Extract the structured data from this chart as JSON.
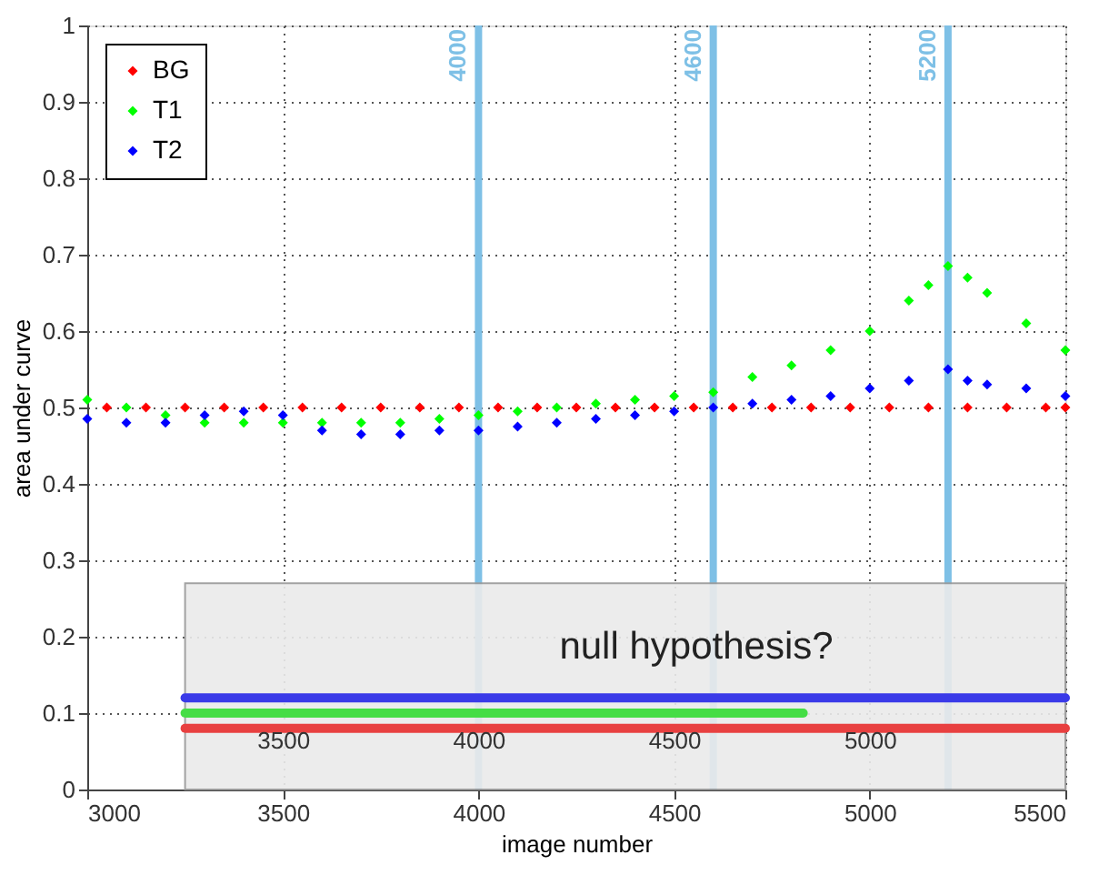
{
  "chart_data": {
    "type": "scatter",
    "xlabel": "image number",
    "ylabel": "area under curve",
    "xlim": [
      3000,
      5500
    ],
    "ylim": [
      0,
      1
    ],
    "xticks": [
      3000,
      3500,
      4000,
      4500,
      5000,
      5500
    ],
    "yticks": [
      0,
      0.1,
      0.2,
      0.3,
      0.4,
      0.5,
      0.6,
      0.7,
      0.8,
      0.9,
      1
    ],
    "grid": true,
    "legend": "top left",
    "marker": "diamond",
    "series": [
      {
        "name": "BG",
        "color": "#ff0000",
        "x": [
          3050,
          3150,
          3250,
          3350,
          3450,
          3550,
          3650,
          3750,
          3850,
          3950,
          4050,
          4150,
          4250,
          4350,
          4450,
          4550,
          4650,
          4750,
          4850,
          4950,
          5050,
          5150,
          5250,
          5350,
          5450,
          5500
        ],
        "values": [
          0.5,
          0.5,
          0.5,
          0.5,
          0.5,
          0.5,
          0.5,
          0.5,
          0.5,
          0.5,
          0.5,
          0.5,
          0.5,
          0.5,
          0.5,
          0.5,
          0.5,
          0.5,
          0.5,
          0.5,
          0.5,
          0.5,
          0.5,
          0.5,
          0.5,
          0.5
        ]
      },
      {
        "name": "T1",
        "color": "#00ff00",
        "x": [
          3000,
          3100,
          3200,
          3300,
          3400,
          3500,
          3600,
          3700,
          3800,
          3900,
          4000,
          4100,
          4200,
          4300,
          4400,
          4500,
          4600,
          4700,
          4800,
          4900,
          5000,
          5100,
          5150,
          5200,
          5250,
          5300,
          5400,
          5500
        ],
        "values": [
          0.51,
          0.5,
          0.49,
          0.48,
          0.48,
          0.48,
          0.48,
          0.48,
          0.48,
          0.485,
          0.49,
          0.495,
          0.5,
          0.505,
          0.51,
          0.515,
          0.52,
          0.54,
          0.555,
          0.575,
          0.6,
          0.64,
          0.66,
          0.685,
          0.67,
          0.65,
          0.61,
          0.575
        ]
      },
      {
        "name": "T2",
        "color": "#0000ff",
        "x": [
          3000,
          3100,
          3200,
          3300,
          3400,
          3500,
          3600,
          3700,
          3800,
          3900,
          4000,
          4100,
          4200,
          4300,
          4400,
          4500,
          4600,
          4700,
          4800,
          4900,
          5000,
          5100,
          5200,
          5250,
          5300,
          5400,
          5500
        ],
        "values": [
          0.485,
          0.48,
          0.48,
          0.49,
          0.495,
          0.49,
          0.47,
          0.465,
          0.465,
          0.47,
          0.47,
          0.475,
          0.48,
          0.485,
          0.49,
          0.495,
          0.5,
          0.505,
          0.51,
          0.515,
          0.525,
          0.535,
          0.55,
          0.535,
          0.53,
          0.525,
          0.515
        ]
      },
      {
        "type": "area",
        "marker": "none",
        "color": "#ebebeb",
        "x": [
          3250,
          5500
        ],
        "values": [
          0.27,
          0.27
        ]
      },
      {
        "type": "line",
        "marker": "none",
        "color": "#3a3ae8",
        "x": [
          3250,
          5500
        ],
        "values": [
          0.12,
          0.12
        ]
      },
      {
        "type": "line",
        "marker": "none",
        "color": "#45dd45",
        "x": [
          3250,
          4830
        ],
        "values": [
          0.1,
          0.1
        ]
      },
      {
        "type": "line",
        "marker": "none",
        "color": "#e84040",
        "x": [
          3250,
          5500
        ],
        "values": [
          0.08,
          0.08
        ]
      }
    ],
    "ref_lines": [
      {
        "axis": "x",
        "value": 4000,
        "label": "4000",
        "color": "#7ec0e6"
      },
      {
        "axis": "x",
        "value": 4600,
        "label": "4600",
        "color": "#7ec0e6"
      },
      {
        "axis": "x",
        "value": 5200,
        "label": "5200",
        "color": "#7ec0e6"
      }
    ],
    "x2lim": [
      3000,
      5500
    ],
    "x2ticks": [
      3500,
      4000,
      4500,
      5000
    ],
    "annotations": [
      "null hypothesis?"
    ]
  }
}
